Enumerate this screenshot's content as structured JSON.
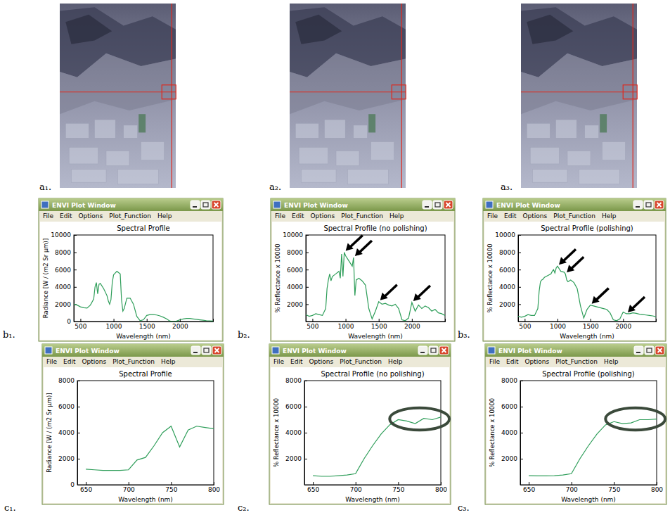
{
  "images": [
    {
      "label": "a₁."
    },
    {
      "label": "a₂."
    },
    {
      "label": "a₃."
    }
  ],
  "chart_data": [
    {
      "type": "line",
      "label": "b₁.",
      "window_title": "ENVI Plot Window",
      "menu": [
        "File",
        "Edit",
        "Options",
        "Plot_Function",
        "Help"
      ],
      "title": "Spectral Profile",
      "x_label": "Wavelength (nm)",
      "y_label": "Radiance [W / (m2 Sr µm)]",
      "xlim": [
        400,
        2500
      ],
      "xticks": [
        500,
        1000,
        1500,
        2000
      ],
      "ylim": [
        0,
        10000
      ],
      "yticks": [
        0,
        2000,
        4000,
        6000,
        8000,
        10000
      ],
      "x": [
        400,
        450,
        500,
        550,
        600,
        650,
        700,
        720,
        740,
        760,
        780,
        800,
        850,
        900,
        920,
        940,
        960,
        980,
        1000,
        1050,
        1100,
        1120,
        1140,
        1160,
        1200,
        1250,
        1300,
        1350,
        1400,
        1450,
        1500,
        1550,
        1600,
        1650,
        1700,
        1750,
        1800,
        1850,
        1900,
        1950,
        2000,
        2050,
        2100,
        2150,
        2200,
        2250,
        2300,
        2350,
        2400,
        2450,
        2500
      ],
      "series": [
        {
          "color": "#2f9e5a",
          "values": [
            2000,
            1900,
            1700,
            1600,
            1550,
            1900,
            2600,
            4000,
            4500,
            3200,
            4300,
            4400,
            3800,
            3000,
            2400,
            2000,
            2500,
            4500,
            5400,
            5800,
            5500,
            2500,
            1200,
            1500,
            2700,
            2700,
            2000,
            600,
            100,
            200,
            700,
            800,
            800,
            750,
            650,
            500,
            300,
            50,
            0,
            50,
            200,
            300,
            350,
            350,
            300,
            250,
            200,
            150,
            100,
            80,
            50
          ]
        }
      ]
    },
    {
      "type": "line",
      "label": "b₂.",
      "window_title": "ENVI Plot Window",
      "menu": [
        "File",
        "Edit",
        "Options",
        "Plot_Function",
        "Help"
      ],
      "title": "Spectral Profile (no polishing)",
      "x_label": "Wavelength (nm)",
      "y_label": "% Reflectance x 10000",
      "xlim": [
        400,
        2500
      ],
      "xticks": [
        500,
        1000,
        1500,
        2000
      ],
      "ylim": [
        0,
        10000
      ],
      "yticks": [
        2000,
        4000,
        6000,
        8000,
        10000
      ],
      "x": [
        400,
        450,
        500,
        550,
        600,
        650,
        700,
        720,
        740,
        760,
        780,
        800,
        850,
        900,
        920,
        940,
        960,
        980,
        1000,
        1050,
        1100,
        1120,
        1140,
        1160,
        1200,
        1250,
        1300,
        1350,
        1400,
        1450,
        1500,
        1550,
        1600,
        1650,
        1700,
        1750,
        1800,
        1850,
        1900,
        1950,
        2000,
        2050,
        2100,
        2150,
        2200,
        2250,
        2300,
        2350,
        2400,
        2450,
        2500
      ],
      "series": [
        {
          "color": "#2f9e5a",
          "values": [
            800,
            600,
            700,
            900,
            800,
            700,
            1500,
            3800,
            4800,
            5500,
            4700,
            5200,
            5500,
            5800,
            5000,
            7800,
            5200,
            8000,
            7600,
            7000,
            6400,
            7400,
            3000,
            4800,
            5000,
            4700,
            4200,
            1500,
            300,
            1200,
            2300,
            2000,
            2100,
            1900,
            1800,
            2000,
            1500,
            200,
            100,
            400,
            2200,
            1200,
            1900,
            1500,
            1800,
            1600,
            1200,
            1400,
            1000,
            900,
            700
          ]
        }
      ],
      "arrows": [
        {
          "x": 980,
          "y": 8000
        },
        {
          "x": 1120,
          "y": 7400
        },
        {
          "x": 1500,
          "y": 2300
        },
        {
          "x": 2000,
          "y": 2200
        }
      ]
    },
    {
      "type": "line",
      "label": "b₃.",
      "window_title": "ENVI Plot Window",
      "menu": [
        "File",
        "Edit",
        "Options",
        "Plot_Function",
        "Help"
      ],
      "title": "Spectral Profile (polishing)",
      "x_label": "Wavelength (nm)",
      "y_label": "% Reflectance x 10000",
      "xlim": [
        400,
        2500
      ],
      "xticks": [
        500,
        1000,
        1500,
        2000
      ],
      "ylim": [
        0,
        10000
      ],
      "yticks": [
        2000,
        4000,
        6000,
        8000,
        10000
      ],
      "x": [
        400,
        450,
        500,
        550,
        600,
        650,
        700,
        720,
        740,
        760,
        780,
        800,
        850,
        900,
        920,
        940,
        960,
        980,
        1000,
        1050,
        1100,
        1120,
        1140,
        1160,
        1200,
        1250,
        1300,
        1350,
        1400,
        1450,
        1500,
        1550,
        1600,
        1650,
        1700,
        1750,
        1800,
        1850,
        1900,
        1950,
        2000,
        2050,
        2100,
        2150,
        2200,
        2250,
        2300,
        2350,
        2400,
        2450,
        2500
      ],
      "series": [
        {
          "color": "#2f9e5a",
          "values": [
            600,
            500,
            600,
            800,
            700,
            700,
            1500,
            3500,
            4600,
            4800,
            4900,
            5100,
            5300,
            5500,
            5800,
            6000,
            5600,
            6200,
            6400,
            5800,
            5700,
            5500,
            4800,
            4600,
            4800,
            4500,
            3800,
            1800,
            400,
            1400,
            1900,
            1800,
            1700,
            1600,
            1500,
            1400,
            1000,
            200,
            100,
            300,
            1100,
            900,
            900,
            1000,
            950,
            850,
            800,
            750,
            700,
            650,
            550
          ]
        }
      ],
      "arrows": [
        {
          "x": 1000,
          "y": 6400
        },
        {
          "x": 1120,
          "y": 5500
        },
        {
          "x": 1500,
          "y": 1900
        },
        {
          "x": 2050,
          "y": 900
        }
      ]
    },
    {
      "type": "line",
      "label": "c₁.",
      "window_title": "ENVI Plot Window",
      "menu": [
        "File",
        "Edit",
        "Options",
        "Plot_Function",
        "Help"
      ],
      "title": "Spectral Profile",
      "x_label": "Wavelength (nm)",
      "y_label": "Radiance [W / (m2 Sr µm)]",
      "xlim": [
        640,
        800
      ],
      "xticks": [
        650,
        700,
        750,
        800
      ],
      "ylim": [
        0,
        8000
      ],
      "yticks": [
        0,
        2000,
        4000,
        6000,
        8000
      ],
      "x": [
        650,
        660,
        670,
        680,
        690,
        700,
        710,
        720,
        730,
        740,
        750,
        760,
        770,
        780,
        790,
        800
      ],
      "series": [
        {
          "color": "#2f9e5a",
          "values": [
            1200,
            1150,
            1100,
            1100,
            1100,
            1150,
            1900,
            2100,
            3000,
            4000,
            4500,
            2900,
            4200,
            4500,
            4400,
            4300
          ]
        }
      ]
    },
    {
      "type": "line",
      "label": "c₂.",
      "window_title": "ENVI Plot Window",
      "menu": [
        "File",
        "Edit",
        "Options",
        "Plot_Function",
        "Help"
      ],
      "title": "Spectral Profile (no polishing)",
      "x_label": "Wavelength (nm)",
      "y_label": "% Reflectance x 10000",
      "xlim": [
        640,
        800
      ],
      "xticks": [
        650,
        700,
        750,
        800
      ],
      "ylim": [
        0,
        8000
      ],
      "yticks": [
        2000,
        4000,
        6000,
        8000
      ],
      "x": [
        650,
        660,
        670,
        680,
        690,
        700,
        710,
        720,
        730,
        740,
        750,
        760,
        770,
        780,
        790,
        800
      ],
      "series": [
        {
          "color": "#2f9e5a",
          "values": [
            700,
            650,
            650,
            700,
            750,
            850,
            2000,
            3000,
            3900,
            4600,
            5000,
            4900,
            4700,
            5100,
            5000,
            5200
          ]
        }
      ],
      "highlight": {
        "x": [
          740,
          810
        ],
        "y": [
          4200,
          5900
        ]
      }
    },
    {
      "type": "line",
      "label": "c₃.",
      "window_title": "ENVI Plot Window",
      "menu": [
        "File",
        "Edit",
        "Options",
        "Plot_Function",
        "Help"
      ],
      "title": "Spectral Profile (polishing)",
      "x_label": "Wavelength (nm)",
      "y_label": "% Reflectance x 10000",
      "xlim": [
        640,
        800
      ],
      "xticks": [
        650,
        700,
        750,
        800
      ],
      "ylim": [
        0,
        8000
      ],
      "yticks": [
        2000,
        4000,
        6000,
        8000
      ],
      "x": [
        650,
        660,
        670,
        680,
        690,
        700,
        710,
        720,
        730,
        740,
        750,
        760,
        770,
        780,
        790,
        800
      ],
      "series": [
        {
          "color": "#2f9e5a",
          "values": [
            700,
            680,
            680,
            700,
            750,
            850,
            2000,
            3000,
            3900,
            4600,
            4850,
            4700,
            4750,
            5000,
            5000,
            5050
          ]
        }
      ],
      "highlight": {
        "x": [
          740,
          810
        ],
        "y": [
          4200,
          5900
        ]
      }
    }
  ]
}
